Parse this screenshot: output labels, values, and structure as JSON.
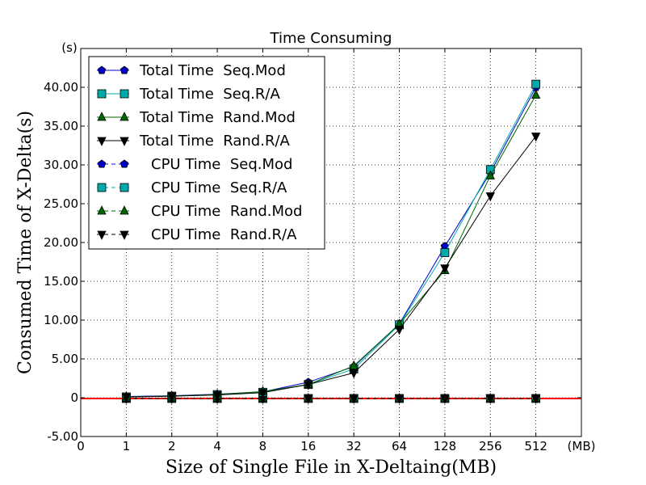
{
  "chart_data": {
    "type": "line",
    "title": "Time Consuming",
    "xlabel": "Size of Single File in X-Deltaing(MB)",
    "ylabel": "Consumed Time of X-Delta(s)",
    "x_unit": "(MB)",
    "y_unit": "(s)",
    "x": [
      1,
      2,
      4,
      8,
      16,
      32,
      64,
      128,
      256,
      512
    ],
    "x_ticks": [
      "0",
      "1",
      "2",
      "4",
      "8",
      "16",
      "32",
      "64",
      "128",
      "256",
      "512"
    ],
    "y_ticks": [
      "-5.00",
      "0",
      "5.00",
      "10.00",
      "15.00",
      "20.00",
      "25.00",
      "30.00",
      "35.00",
      "40.00"
    ],
    "ylim": [
      -5,
      45
    ],
    "grid": true,
    "legend_position": "top-left",
    "series": [
      {
        "name": "Total Time  Seq.Mod",
        "color": "#0000cc",
        "marker": "pentagon",
        "dash": "solid",
        "values": [
          0.15,
          0.25,
          0.45,
          0.75,
          2.0,
          4.0,
          9.5,
          19.5,
          29.0,
          40.0
        ]
      },
      {
        "name": "Total Time  Seq.R/A",
        "color": "#00aaaa",
        "marker": "square",
        "dash": "solid",
        "values": [
          0.1,
          0.2,
          0.4,
          0.7,
          1.7,
          3.7,
          9.4,
          18.7,
          29.4,
          40.4
        ]
      },
      {
        "name": "Total Time  Rand.Mod",
        "color": "#006600",
        "marker": "triangle-up",
        "dash": "solid",
        "values": [
          0.12,
          0.22,
          0.42,
          0.8,
          1.7,
          4.1,
          9.5,
          16.4,
          28.6,
          39.0
        ]
      },
      {
        "name": "Total Time  Rand.R/A",
        "color": "#000000",
        "marker": "triangle-down",
        "dash": "solid",
        "values": [
          0.1,
          0.2,
          0.35,
          0.65,
          1.7,
          3.2,
          8.8,
          16.7,
          26.0,
          33.7
        ]
      },
      {
        "name": "CPU Time  Seq.Mod",
        "color": "#0000cc",
        "marker": "pentagon",
        "dash": "dashed",
        "values": [
          -0.1,
          -0.1,
          -0.1,
          -0.1,
          -0.1,
          -0.1,
          -0.1,
          -0.1,
          -0.1,
          -0.1
        ]
      },
      {
        "name": "CPU Time  Seq.R/A",
        "color": "#00aaaa",
        "marker": "square",
        "dash": "dashed",
        "values": [
          -0.1,
          -0.1,
          -0.1,
          -0.1,
          -0.1,
          -0.1,
          -0.1,
          -0.1,
          -0.1,
          -0.1
        ]
      },
      {
        "name": "CPU Time  Rand.Mod",
        "color": "#006600",
        "marker": "triangle-up",
        "dash": "dashed",
        "values": [
          -0.1,
          -0.1,
          -0.1,
          -0.1,
          -0.1,
          -0.1,
          -0.1,
          -0.1,
          -0.1,
          -0.1
        ]
      },
      {
        "name": "CPU Time  Rand.R/A",
        "color": "#000000",
        "marker": "triangle-down",
        "dash": "dashed",
        "values": [
          -0.1,
          -0.1,
          -0.1,
          -0.1,
          -0.1,
          -0.1,
          -0.1,
          -0.1,
          -0.1,
          -0.1
        ]
      }
    ],
    "reference_line": {
      "y": -0.1,
      "color": "#ff0000"
    }
  }
}
